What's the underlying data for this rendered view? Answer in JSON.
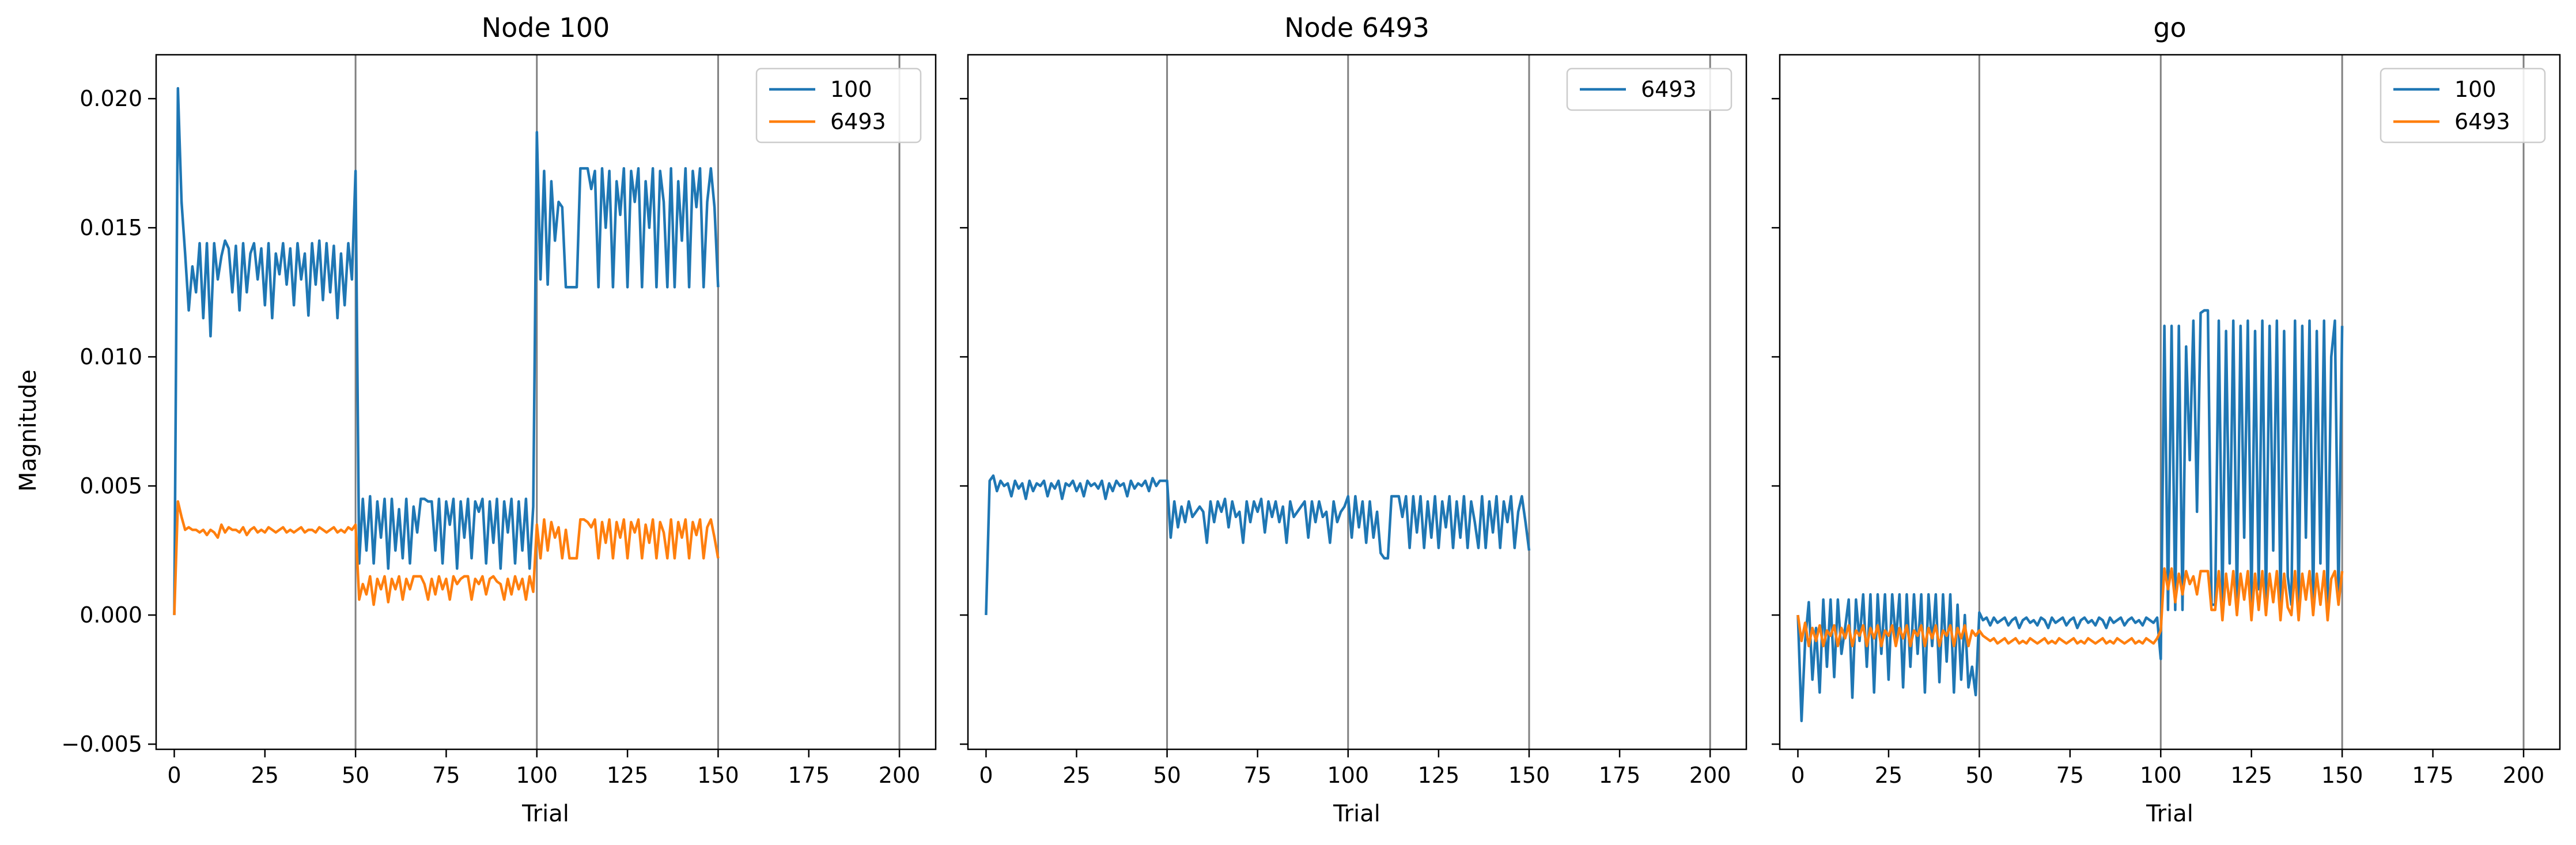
{
  "chart_data": [
    {
      "type": "line",
      "title": "Node 100",
      "xlabel": "Trial",
      "ylabel": "Magnitude",
      "xlim": [
        -5,
        210
      ],
      "ylim": [
        -0.0052,
        0.0217
      ],
      "xticks": [
        0,
        25,
        50,
        75,
        100,
        125,
        150,
        175,
        200
      ],
      "yticks": [
        -0.005,
        0.0,
        0.005,
        0.01,
        0.015,
        0.02
      ],
      "ytick_labels": [
        "−0.005",
        "0.000",
        "0.005",
        "0.010",
        "0.015",
        "0.020"
      ],
      "vlines": [
        50,
        100,
        150,
        200
      ],
      "grid": false,
      "legend": "top-right",
      "series": [
        {
          "name": "100",
          "color": "#1f77b4",
          "values": [
            0.0,
            0.0204,
            0.016,
            0.014,
            0.0118,
            0.0135,
            0.0125,
            0.0144,
            0.0115,
            0.0144,
            0.0108,
            0.0144,
            0.013,
            0.0139,
            0.0145,
            0.0142,
            0.0125,
            0.0143,
            0.0118,
            0.0144,
            0.0125,
            0.014,
            0.0144,
            0.013,
            0.0142,
            0.012,
            0.0144,
            0.0115,
            0.014,
            0.0132,
            0.0144,
            0.0128,
            0.0142,
            0.012,
            0.0144,
            0.013,
            0.014,
            0.0116,
            0.0144,
            0.0128,
            0.0145,
            0.0122,
            0.0144,
            0.0125,
            0.0143,
            0.0115,
            0.014,
            0.012,
            0.0144,
            0.013,
            0.0172,
            0.002,
            0.0045,
            0.0025,
            0.0046,
            0.002,
            0.0044,
            0.003,
            0.0045,
            0.0018,
            0.0045,
            0.0025,
            0.0041,
            0.0022,
            0.0045,
            0.002,
            0.0042,
            0.0032,
            0.0045,
            0.0045,
            0.0044,
            0.0044,
            0.0025,
            0.0045,
            0.002,
            0.0044,
            0.0035,
            0.0045,
            0.0018,
            0.0044,
            0.003,
            0.0045,
            0.0022,
            0.0044,
            0.004,
            0.0045,
            0.002,
            0.0044,
            0.0028,
            0.0045,
            0.0018,
            0.0044,
            0.0032,
            0.0045,
            0.002,
            0.0044,
            0.0025,
            0.0045,
            0.0018,
            0.0042,
            0.0187,
            0.013,
            0.0172,
            0.0128,
            0.0168,
            0.0145,
            0.016,
            0.0158,
            0.0127,
            0.0127,
            0.0127,
            0.0127,
            0.0173,
            0.0173,
            0.0173,
            0.0165,
            0.0172,
            0.0127,
            0.0173,
            0.015,
            0.0172,
            0.0127,
            0.0168,
            0.0155,
            0.0173,
            0.0127,
            0.0172,
            0.016,
            0.0173,
            0.0127,
            0.0168,
            0.015,
            0.0173,
            0.0127,
            0.0172,
            0.016,
            0.0127,
            0.0173,
            0.0127,
            0.0168,
            0.0145,
            0.0173,
            0.0127,
            0.0172,
            0.0158,
            0.0173,
            0.0127,
            0.016,
            0.0173,
            0.0158,
            0.0127
          ]
        },
        {
          "name": "6493",
          "color": "#ff7f0e",
          "values": [
            0.0,
            0.0044,
            0.0038,
            0.0033,
            0.0034,
            0.0033,
            0.0033,
            0.0032,
            0.0033,
            0.0031,
            0.0033,
            0.0032,
            0.003,
            0.0035,
            0.0032,
            0.0034,
            0.0033,
            0.0033,
            0.0032,
            0.0034,
            0.0031,
            0.0033,
            0.0034,
            0.0032,
            0.0033,
            0.0032,
            0.0034,
            0.0033,
            0.0032,
            0.0033,
            0.0034,
            0.0032,
            0.0033,
            0.0032,
            0.0033,
            0.0034,
            0.0032,
            0.0033,
            0.0033,
            0.0032,
            0.0034,
            0.0033,
            0.0032,
            0.0033,
            0.0034,
            0.0032,
            0.0033,
            0.0032,
            0.0034,
            0.0033,
            0.0035,
            0.0006,
            0.0012,
            0.0008,
            0.0015,
            0.0004,
            0.0014,
            0.001,
            0.0015,
            0.0005,
            0.0014,
            0.001,
            0.0015,
            0.0006,
            0.0014,
            0.001,
            0.0015,
            0.0015,
            0.0015,
            0.0012,
            0.0006,
            0.0014,
            0.0008,
            0.0015,
            0.001,
            0.0014,
            0.0006,
            0.0015,
            0.0012,
            0.0014,
            0.0015,
            0.0015,
            0.0006,
            0.0014,
            0.0012,
            0.0015,
            0.0008,
            0.0014,
            0.0015,
            0.0013,
            0.0012,
            0.0006,
            0.0014,
            0.0008,
            0.0015,
            0.001,
            0.0014,
            0.0006,
            0.0015,
            0.0009,
            0.0035,
            0.0022,
            0.0037,
            0.0025,
            0.0036,
            0.003,
            0.0034,
            0.0022,
            0.0033,
            0.0022,
            0.0022,
            0.0022,
            0.0037,
            0.0037,
            0.0036,
            0.0034,
            0.0037,
            0.0022,
            0.0036,
            0.0028,
            0.0037,
            0.0022,
            0.0036,
            0.003,
            0.0037,
            0.0022,
            0.0036,
            0.0032,
            0.0037,
            0.0022,
            0.0035,
            0.0028,
            0.0037,
            0.0022,
            0.0036,
            0.0032,
            0.0022,
            0.0037,
            0.0022,
            0.0036,
            0.003,
            0.0037,
            0.0022,
            0.0036,
            0.0031,
            0.0037,
            0.0022,
            0.0034,
            0.0037,
            0.003,
            0.0022
          ]
        }
      ]
    },
    {
      "type": "line",
      "title": "Node 6493",
      "xlabel": "Trial",
      "ylabel": "",
      "xlim": [
        -5,
        210
      ],
      "ylim": [
        -0.0052,
        0.0217
      ],
      "xticks": [
        0,
        25,
        50,
        75,
        100,
        125,
        150,
        175,
        200
      ],
      "yticks": [
        -0.005,
        0.0,
        0.005,
        0.01,
        0.015,
        0.02
      ],
      "ytick_labels": [],
      "vlines": [
        50,
        100,
        150,
        200
      ],
      "grid": false,
      "legend": "top-right",
      "series": [
        {
          "name": "6493",
          "color": "#1f77b4",
          "values": [
            0.0,
            0.0052,
            0.0054,
            0.0048,
            0.0052,
            0.005,
            0.0051,
            0.0046,
            0.0052,
            0.0049,
            0.0051,
            0.0045,
            0.0052,
            0.0048,
            0.0051,
            0.005,
            0.0052,
            0.0046,
            0.0051,
            0.0049,
            0.0052,
            0.0045,
            0.0051,
            0.005,
            0.0052,
            0.0048,
            0.0051,
            0.0046,
            0.0052,
            0.005,
            0.0051,
            0.0049,
            0.0052,
            0.0045,
            0.0051,
            0.0048,
            0.0052,
            0.005,
            0.0051,
            0.0046,
            0.0052,
            0.0049,
            0.0051,
            0.005,
            0.0052,
            0.0048,
            0.0053,
            0.005,
            0.0052,
            0.0052,
            0.0052,
            0.003,
            0.0044,
            0.0034,
            0.0042,
            0.0036,
            0.0044,
            0.0038,
            0.004,
            0.0042,
            0.004,
            0.0028,
            0.0044,
            0.0036,
            0.0044,
            0.004,
            0.0045,
            0.0034,
            0.0044,
            0.0038,
            0.004,
            0.0028,
            0.0044,
            0.0036,
            0.0044,
            0.004,
            0.0045,
            0.0032,
            0.0044,
            0.0038,
            0.0044,
            0.0036,
            0.0042,
            0.0028,
            0.0044,
            0.0038,
            0.004,
            0.0042,
            0.0044,
            0.003,
            0.0044,
            0.0036,
            0.0044,
            0.0038,
            0.004,
            0.0028,
            0.0044,
            0.0036,
            0.004,
            0.0042,
            0.0046,
            0.003,
            0.0046,
            0.0034,
            0.0044,
            0.0028,
            0.0044,
            0.003,
            0.004,
            0.0024,
            0.0022,
            0.0022,
            0.0046,
            0.0046,
            0.0046,
            0.0038,
            0.0046,
            0.0026,
            0.0046,
            0.0032,
            0.0046,
            0.0026,
            0.0044,
            0.003,
            0.0046,
            0.0026,
            0.0044,
            0.0034,
            0.0046,
            0.0026,
            0.0044,
            0.003,
            0.0046,
            0.0026,
            0.0044,
            0.0036,
            0.0026,
            0.0046,
            0.0026,
            0.0044,
            0.0032,
            0.0046,
            0.0026,
            0.0044,
            0.0036,
            0.0046,
            0.0026,
            0.004,
            0.0046,
            0.0036,
            0.0025
          ]
        }
      ]
    },
    {
      "type": "line",
      "title": "go",
      "xlabel": "Trial",
      "ylabel": "",
      "xlim": [
        -5,
        210
      ],
      "ylim": [
        -0.0052,
        0.0217
      ],
      "xticks": [
        0,
        25,
        50,
        75,
        100,
        125,
        150,
        175,
        200
      ],
      "yticks": [
        -0.005,
        0.0,
        0.005,
        0.01,
        0.015,
        0.02
      ],
      "ytick_labels": [],
      "vlines": [
        50,
        100,
        150,
        200
      ],
      "grid": false,
      "legend": "top-right",
      "series": [
        {
          "name": "100",
          "color": "#1f77b4",
          "values": [
            0.0,
            -0.0041,
            -0.001,
            0.0005,
            -0.0025,
            -0.0005,
            -0.003,
            0.0006,
            -0.002,
            0.0006,
            -0.0024,
            0.0006,
            -0.0015,
            -0.0005,
            0.0006,
            -0.0032,
            0.0006,
            -0.001,
            0.0008,
            -0.002,
            0.0008,
            -0.003,
            0.0008,
            -0.0015,
            0.0008,
            -0.0025,
            0.0008,
            -0.001,
            0.0008,
            -0.0028,
            0.0008,
            -0.002,
            0.0008,
            -0.0015,
            0.0008,
            -0.003,
            0.0008,
            -0.0012,
            0.0008,
            -0.0026,
            0.0008,
            -0.0018,
            0.0008,
            -0.003,
            0.0004,
            -0.0025,
            0.0,
            -0.0028,
            -0.002,
            -0.0031,
            0.0001,
            -0.0002,
            -0.0001,
            -0.0004,
            -0.0001,
            -0.0003,
            -0.0002,
            -0.0001,
            -0.0004,
            -0.0002,
            -0.0001,
            -0.0005,
            -0.0002,
            -0.0001,
            -0.0003,
            -0.0002,
            -0.0004,
            -0.0001,
            -0.0002,
            -0.0005,
            -0.0001,
            -0.0003,
            -0.0002,
            -0.0001,
            -0.0004,
            -0.0002,
            -0.0001,
            -0.0005,
            -0.0002,
            -0.0001,
            -0.0003,
            -0.0002,
            -0.0004,
            -0.0001,
            -0.0002,
            -0.0005,
            -0.0001,
            -0.0003,
            -0.0002,
            -0.0001,
            -0.0004,
            -0.0002,
            -0.0001,
            -0.0003,
            -0.0002,
            -0.0004,
            -0.0001,
            -0.0002,
            -0.0003,
            -0.0001,
            -0.0017,
            0.0112,
            0.0002,
            0.0112,
            0.0002,
            0.0112,
            0.0002,
            0.0104,
            0.006,
            0.0114,
            0.004,
            0.0117,
            0.0118,
            0.0118,
            0.0004,
            0.0004,
            0.0114,
            0.0004,
            0.011,
            0.002,
            0.0114,
            0.0004,
            0.0112,
            0.003,
            0.0114,
            0.0004,
            0.011,
            0.001,
            0.0114,
            0.0004,
            0.0112,
            0.0025,
            0.0114,
            0.0004,
            0.011,
            0.0015,
            0.0004,
            0.0114,
            0.0004,
            0.0112,
            0.003,
            0.0114,
            0.0004,
            0.011,
            0.002,
            0.0114,
            0.0004,
            0.01,
            0.0114,
            0.0006,
            0.0112
          ]
        },
        {
          "name": "6493",
          "color": "#ff7f0e",
          "values": [
            0.0,
            -0.001,
            -0.0003,
            -0.0012,
            -0.0005,
            -0.001,
            -0.0004,
            -0.0012,
            -0.0006,
            -0.0008,
            -0.0004,
            -0.0012,
            -0.0005,
            -0.0009,
            -0.0004,
            -0.0012,
            -0.0006,
            -0.0008,
            -0.0004,
            -0.0012,
            -0.0005,
            -0.0009,
            -0.0004,
            -0.0012,
            -0.0006,
            -0.0008,
            -0.0004,
            -0.0012,
            -0.0005,
            -0.0009,
            -0.0004,
            -0.0012,
            -0.0006,
            -0.0008,
            -0.0004,
            -0.0012,
            -0.0005,
            -0.0009,
            -0.0004,
            -0.0012,
            -0.0006,
            -0.0008,
            -0.0004,
            -0.0012,
            -0.0005,
            -0.0009,
            -0.0004,
            -0.0012,
            -0.0006,
            -0.0008,
            -0.0006,
            -0.0008,
            -0.0009,
            -0.001,
            -0.0009,
            -0.0011,
            -0.001,
            -0.0009,
            -0.0011,
            -0.001,
            -0.0009,
            -0.0011,
            -0.001,
            -0.0011,
            -0.0009,
            -0.001,
            -0.0011,
            -0.001,
            -0.0009,
            -0.0011,
            -0.001,
            -0.0011,
            -0.0009,
            -0.001,
            -0.0011,
            -0.001,
            -0.0009,
            -0.0011,
            -0.001,
            -0.0011,
            -0.0009,
            -0.001,
            -0.0011,
            -0.001,
            -0.0009,
            -0.0011,
            -0.001,
            -0.0011,
            -0.0009,
            -0.001,
            -0.0011,
            -0.001,
            -0.0009,
            -0.0011,
            -0.001,
            -0.0011,
            -0.0009,
            -0.001,
            -0.0011,
            -0.0009,
            -0.0006,
            0.0018,
            0.001,
            0.0018,
            0.0005,
            0.0016,
            0.0008,
            0.0017,
            0.0012,
            0.0015,
            0.0008,
            0.0017,
            0.0017,
            0.0017,
            0.0002,
            0.0002,
            0.0017,
            -0.0002,
            0.0016,
            0.0004,
            0.0017,
            0.0,
            0.0016,
            0.0006,
            0.0017,
            -0.0002,
            0.0016,
            0.0002,
            0.0017,
            0.0,
            0.0016,
            0.0005,
            0.0017,
            -0.0002,
            0.0016,
            0.0003,
            0.0,
            0.0017,
            -0.0002,
            0.0016,
            0.0006,
            0.0017,
            0.0,
            0.0016,
            0.0004,
            0.0017,
            -0.0002,
            0.0014,
            0.0017,
            0.0004,
            0.0017
          ]
        }
      ]
    }
  ]
}
